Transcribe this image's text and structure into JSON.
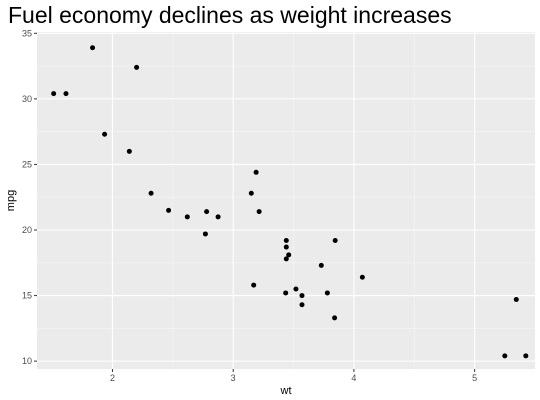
{
  "chart_data": {
    "type": "scatter",
    "title": "Fuel economy declines as weight increases",
    "xlabel": "wt",
    "ylabel": "mpg",
    "xlim": [
      1.375,
      5.5
    ],
    "ylim": [
      9.4,
      35.1
    ],
    "x_ticks": [
      2,
      3,
      4,
      5
    ],
    "y_ticks": [
      10,
      15,
      20,
      25,
      30,
      35
    ],
    "x_tick_labels": [
      "2",
      "3",
      "4",
      "5"
    ],
    "y_tick_labels": [
      "10",
      "15",
      "20",
      "25",
      "30",
      "35"
    ],
    "grid": true,
    "legend": "none",
    "colors": {
      "panel": "#ebebeb",
      "grid_major": "#ffffff",
      "grid_minor": "#f5f5f5",
      "point": "#000000",
      "tick": "#333333"
    },
    "points": [
      {
        "x": 2.62,
        "y": 21.0
      },
      {
        "x": 2.875,
        "y": 21.0
      },
      {
        "x": 2.32,
        "y": 22.8
      },
      {
        "x": 3.215,
        "y": 21.4
      },
      {
        "x": 3.44,
        "y": 18.7
      },
      {
        "x": 3.46,
        "y": 18.1
      },
      {
        "x": 3.57,
        "y": 14.3
      },
      {
        "x": 3.19,
        "y": 24.4
      },
      {
        "x": 3.15,
        "y": 22.8
      },
      {
        "x": 3.44,
        "y": 19.2
      },
      {
        "x": 3.44,
        "y": 17.8
      },
      {
        "x": 4.07,
        "y": 16.4
      },
      {
        "x": 3.73,
        "y": 17.3
      },
      {
        "x": 3.78,
        "y": 15.2
      },
      {
        "x": 5.25,
        "y": 10.4
      },
      {
        "x": 5.424,
        "y": 10.4
      },
      {
        "x": 5.345,
        "y": 14.7
      },
      {
        "x": 2.2,
        "y": 32.4
      },
      {
        "x": 1.615,
        "y": 30.4
      },
      {
        "x": 1.835,
        "y": 33.9
      },
      {
        "x": 2.465,
        "y": 21.5
      },
      {
        "x": 3.52,
        "y": 15.5
      },
      {
        "x": 3.435,
        "y": 15.2
      },
      {
        "x": 3.84,
        "y": 13.3
      },
      {
        "x": 3.845,
        "y": 19.2
      },
      {
        "x": 1.935,
        "y": 27.3
      },
      {
        "x": 2.14,
        "y": 26.0
      },
      {
        "x": 1.513,
        "y": 30.4
      },
      {
        "x": 3.17,
        "y": 15.8
      },
      {
        "x": 2.77,
        "y": 19.7
      },
      {
        "x": 3.57,
        "y": 15.0
      },
      {
        "x": 2.78,
        "y": 21.4
      }
    ]
  }
}
